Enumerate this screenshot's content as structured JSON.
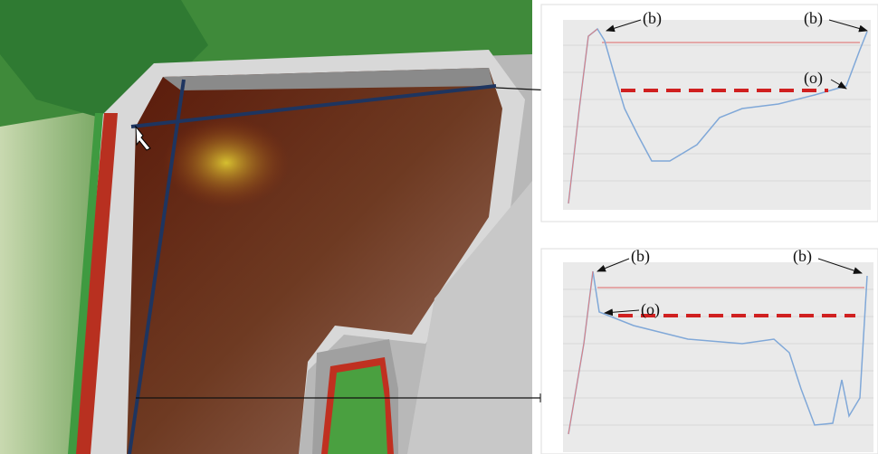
{
  "panels": [
    {
      "labels": [
        "(b)",
        "(b)",
        "(o)"
      ]
    },
    {
      "labels": [
        "(b)",
        "(b)",
        "(o)"
      ]
    }
  ]
}
